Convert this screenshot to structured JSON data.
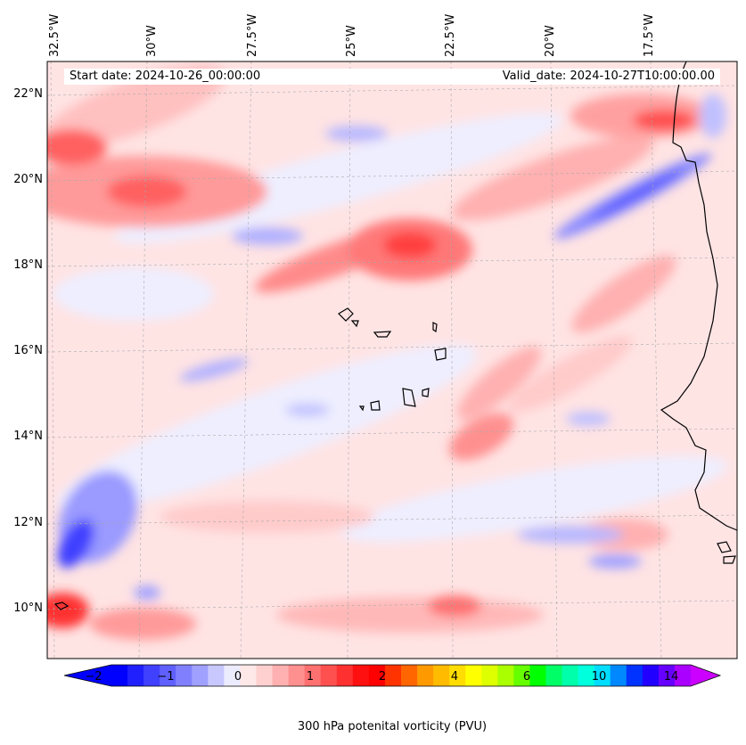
{
  "map": {
    "lon_labels": [
      "32.5°W",
      "30°W",
      "27.5°W",
      "25°W",
      "22.5°W",
      "20°W",
      "17.5°W"
    ],
    "lat_labels": [
      "22°N",
      "20°N",
      "18°N",
      "16°N",
      "14°N",
      "12°N",
      "10°N"
    ],
    "start_date": "Start date: 2024-10-26_00:00:00",
    "valid_date": "Valid_date: 2024-10-27T10:00:00.00",
    "field": "300 hPa potential vorticity",
    "extent": {
      "lon": [
        -33,
        -15.5
      ],
      "lat": [
        9,
        22.8
      ]
    }
  },
  "colorbar": {
    "label": "300 hPa potenital vorticity (PVU)",
    "ticks": [
      "−2",
      "−1",
      "0",
      "1",
      "2",
      "4",
      "6",
      "10",
      "14"
    ],
    "colors": [
      "#0000ff",
      "#2020ff",
      "#4040ff",
      "#6060ff",
      "#8080ff",
      "#a0a0ff",
      "#c8c8ff",
      "#ececff",
      "#ffe8e8",
      "#ffd0d0",
      "#ffb0b0",
      "#ff9090",
      "#ff7070",
      "#ff5050",
      "#ff3030",
      "#ff1010",
      "#ff0000",
      "#ff3300",
      "#ff6600",
      "#ff9900",
      "#ffbb00",
      "#ffdd00",
      "#ffff00",
      "#ddff00",
      "#aaff00",
      "#66ff00",
      "#00ff00",
      "#00ff66",
      "#00ffaa",
      "#00ffdd",
      "#00ddff",
      "#0088ff",
      "#0033ff",
      "#2200ff",
      "#6600ff",
      "#aa00ff"
    ],
    "extend_low": "#0000ff",
    "extend_high": "#cc00ff"
  }
}
